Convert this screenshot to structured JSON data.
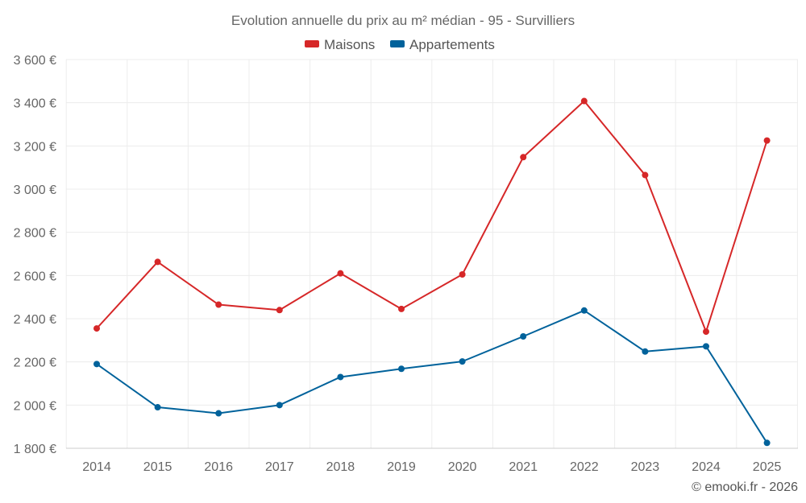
{
  "chart_data": {
    "type": "line",
    "title": "Evolution annuelle du prix au m² médian - 95 - Survilliers",
    "categories": [
      "2014",
      "2015",
      "2016",
      "2017",
      "2018",
      "2019",
      "2020",
      "2021",
      "2022",
      "2023",
      "2024",
      "2025"
    ],
    "series": [
      {
        "name": "Maisons",
        "color": "#d62728",
        "values": [
          2355,
          2663,
          2465,
          2440,
          2610,
          2445,
          2605,
          3148,
          3408,
          3065,
          2340,
          3225
        ]
      },
      {
        "name": "Appartements",
        "color": "#00629b",
        "values": [
          2190,
          1990,
          1962,
          2000,
          2130,
          2168,
          2202,
          2318,
          2438,
          2248,
          2272,
          1825
        ]
      }
    ],
    "y_ticks": [
      "1 800 €",
      "2 000 €",
      "2 200 €",
      "2 400 €",
      "2 600 €",
      "2 800 €",
      "3 000 €",
      "3 200 €",
      "3 400 €",
      "3 600 €"
    ],
    "ylim": [
      1800,
      3600
    ],
    "xlabel": "",
    "ylabel": "",
    "grid": true,
    "legend": "top-center"
  },
  "credit": "© emooki.fr - 2026"
}
